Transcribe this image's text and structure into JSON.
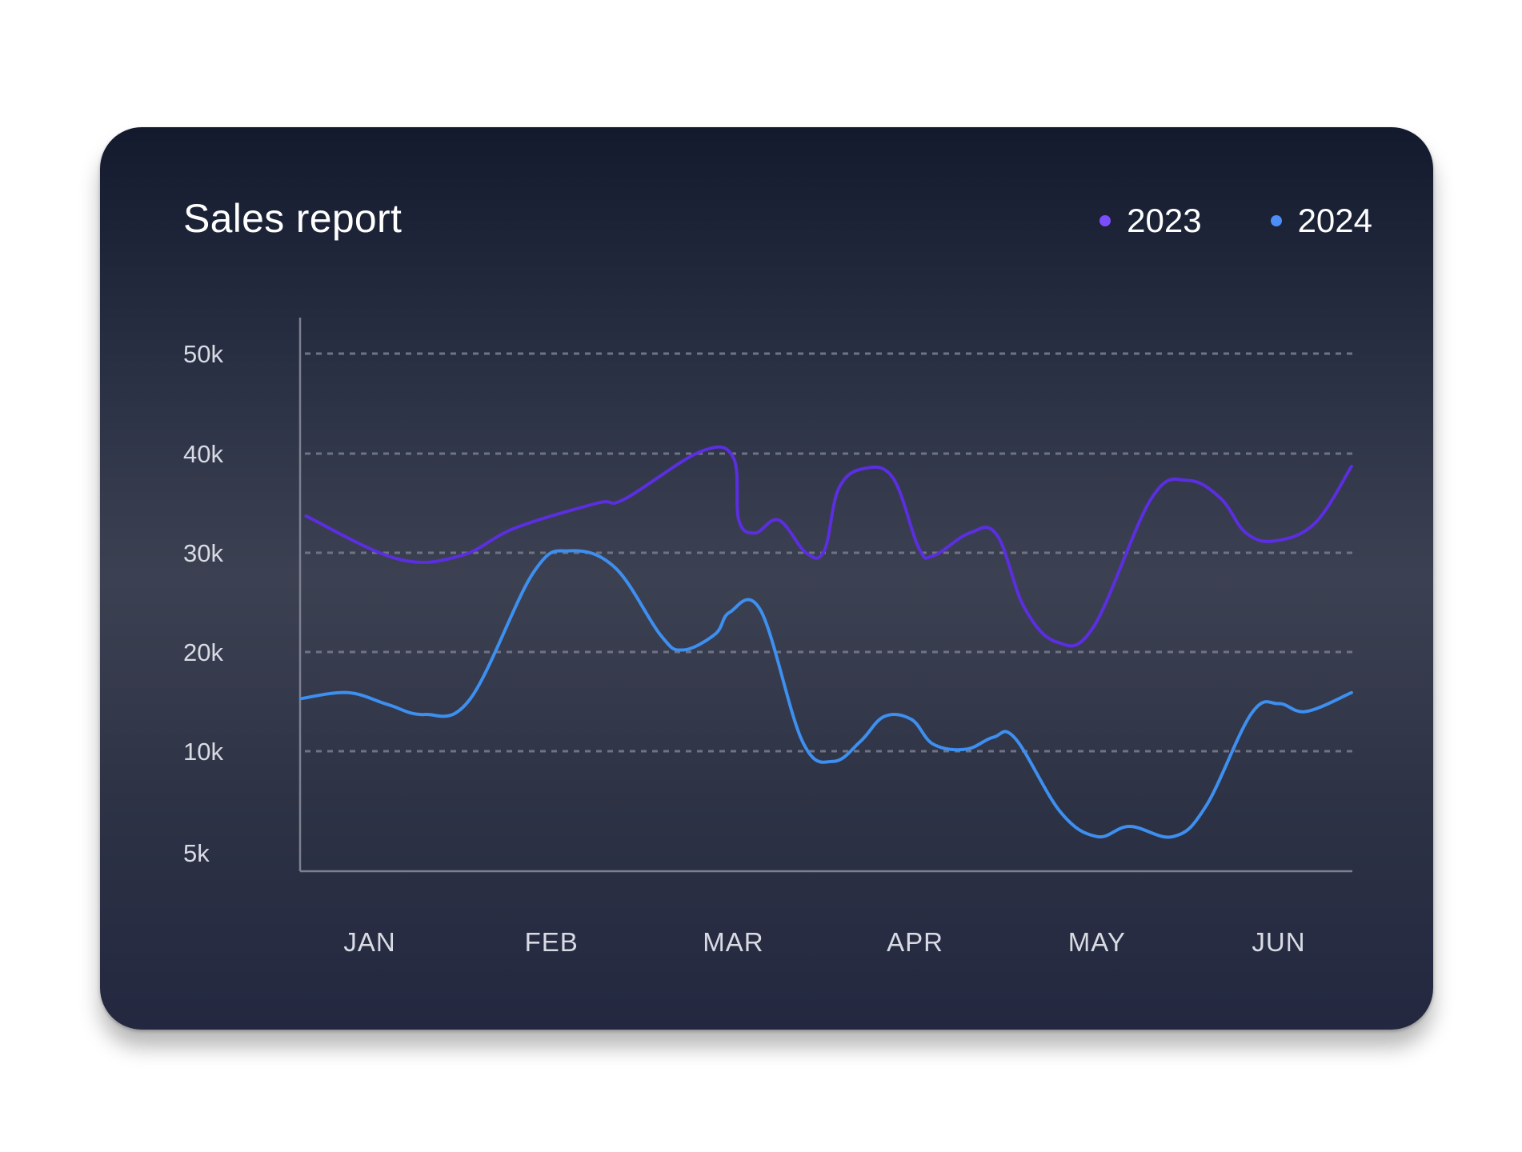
{
  "chart_data": {
    "type": "line",
    "title": "Sales report",
    "xlabel": "",
    "ylabel": "",
    "categories": [
      "JAN",
      "FEB",
      "MAR",
      "APR",
      "MAY",
      "JUN"
    ],
    "y_ticks": [
      {
        "value": 50000,
        "label": "50k"
      },
      {
        "value": 40000,
        "label": "40k"
      },
      {
        "value": 30000,
        "label": "30k"
      },
      {
        "value": 20000,
        "label": "20k"
      },
      {
        "value": 10000,
        "label": "10k"
      },
      {
        "value": 5000,
        "label": "5k"
      }
    ],
    "grid_values": [
      50000,
      40000,
      30000,
      20000,
      10000
    ],
    "x_range": [
      0.62,
      6.4
    ],
    "legend_position": "top-right",
    "series": [
      {
        "name": "2023",
        "color": "#5b2ee0",
        "dot_color": "#7c4dff",
        "points": [
          [
            0.65,
            33700
          ],
          [
            1.15,
            29400
          ],
          [
            1.5,
            29700
          ],
          [
            1.8,
            32500
          ],
          [
            2.25,
            35000
          ],
          [
            2.4,
            35400
          ],
          [
            2.82,
            40200
          ],
          [
            3.0,
            39600
          ],
          [
            3.03,
            33300
          ],
          [
            3.12,
            32000
          ],
          [
            3.25,
            33300
          ],
          [
            3.4,
            30000
          ],
          [
            3.5,
            30200
          ],
          [
            3.58,
            36500
          ],
          [
            3.72,
            38500
          ],
          [
            3.88,
            37500
          ],
          [
            4.02,
            30500
          ],
          [
            4.1,
            29700
          ],
          [
            4.3,
            32000
          ],
          [
            4.45,
            31800
          ],
          [
            4.6,
            24500
          ],
          [
            4.78,
            21000
          ],
          [
            4.98,
            22500
          ],
          [
            5.3,
            35500
          ],
          [
            5.5,
            37300
          ],
          [
            5.68,
            35500
          ],
          [
            5.82,
            32000
          ],
          [
            5.98,
            31200
          ],
          [
            6.2,
            33000
          ],
          [
            6.4,
            38700
          ]
        ]
      },
      {
        "name": "2024",
        "color": "#3d8ff0",
        "dot_color": "#4c8df6",
        "points": [
          [
            0.62,
            15300
          ],
          [
            0.88,
            15900
          ],
          [
            1.1,
            14700
          ],
          [
            1.3,
            13700
          ],
          [
            1.55,
            15200
          ],
          [
            1.9,
            28000
          ],
          [
            2.1,
            30200
          ],
          [
            2.35,
            28500
          ],
          [
            2.6,
            21700
          ],
          [
            2.72,
            20200
          ],
          [
            2.9,
            21800
          ],
          [
            2.98,
            24000
          ],
          [
            3.15,
            24200
          ],
          [
            3.38,
            11000
          ],
          [
            3.55,
            9500
          ],
          [
            3.7,
            11000
          ],
          [
            3.83,
            13500
          ],
          [
            3.98,
            13200
          ],
          [
            4.1,
            10700
          ],
          [
            4.28,
            10200
          ],
          [
            4.43,
            11400
          ],
          [
            4.55,
            11300
          ],
          [
            4.8,
            7000
          ],
          [
            5.0,
            5800
          ],
          [
            5.18,
            6300
          ],
          [
            5.42,
            5800
          ],
          [
            5.6,
            7300
          ],
          [
            5.85,
            13800
          ],
          [
            6.0,
            14800
          ],
          [
            6.15,
            14000
          ],
          [
            6.4,
            15900
          ]
        ]
      }
    ]
  }
}
